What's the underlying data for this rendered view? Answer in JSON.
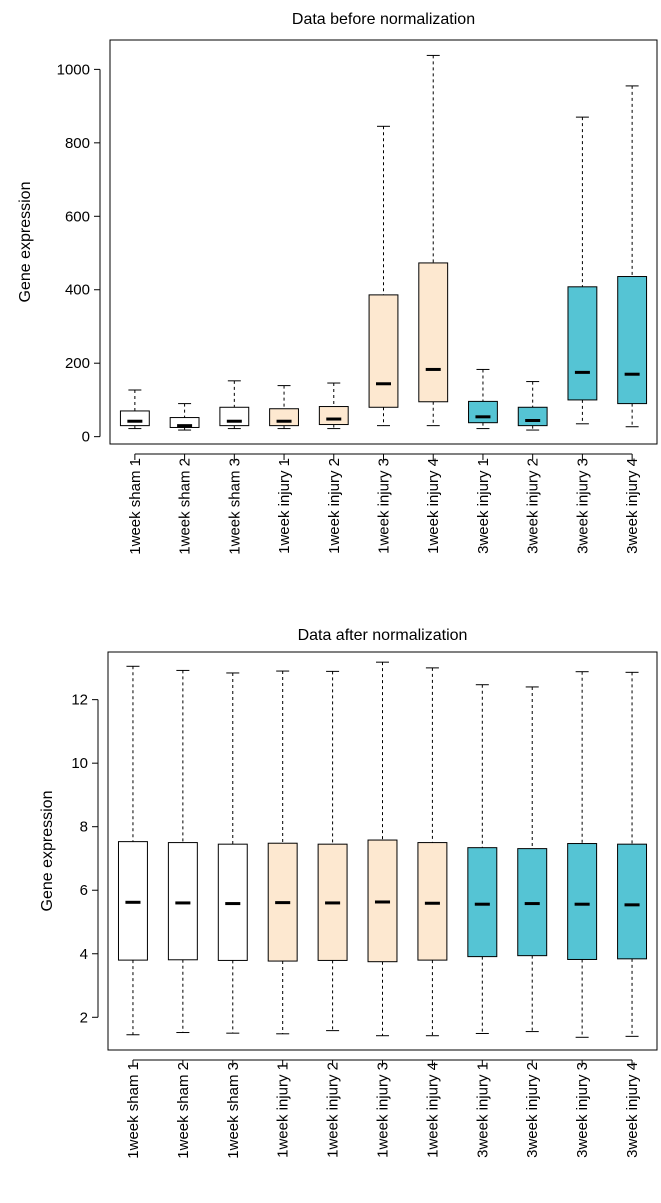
{
  "colors": {
    "sham": "#ffffff",
    "week1_injury": "#fde8d0",
    "week3_injury": "#55c4d4",
    "stroke": "#000000"
  },
  "chart_data": [
    {
      "type": "box",
      "title": "Data before normalization",
      "xlabel": "",
      "ylabel": "Gene expression",
      "ylim": [
        -20,
        1080
      ],
      "yticks": [
        0,
        200,
        400,
        600,
        800,
        1000
      ],
      "ytick_labels": [
        "0",
        "200",
        "400",
        "600",
        "800",
        "1000"
      ],
      "categories": [
        "1week sham 1",
        "1week sham 2",
        "1week sham 3",
        "1week injury 1",
        "1week injury 2",
        "1week injury 3",
        "1week injury 4",
        "3week injury 1",
        "3week injury 2",
        "3week injury 3",
        "3week injury 4"
      ],
      "group_colors": [
        "sham",
        "sham",
        "sham",
        "week1_injury",
        "week1_injury",
        "week1_injury",
        "week1_injury",
        "week3_injury",
        "week3_injury",
        "week3_injury",
        "week3_injury"
      ],
      "boxes": [
        {
          "whisker_low": 22,
          "q1": 30,
          "median": 42,
          "q3": 70,
          "whisker_high": 127
        },
        {
          "whisker_low": 18,
          "q1": 25,
          "median": 30,
          "q3": 52,
          "whisker_high": 90
        },
        {
          "whisker_low": 22,
          "q1": 30,
          "median": 42,
          "q3": 80,
          "whisker_high": 152
        },
        {
          "whisker_low": 22,
          "q1": 30,
          "median": 42,
          "q3": 76,
          "whisker_high": 139
        },
        {
          "whisker_low": 22,
          "q1": 33,
          "median": 48,
          "q3": 82,
          "whisker_high": 146
        },
        {
          "whisker_low": 30,
          "q1": 80,
          "median": 144,
          "q3": 386,
          "whisker_high": 845
        },
        {
          "whisker_low": 30,
          "q1": 95,
          "median": 183,
          "q3": 473,
          "whisker_high": 1038
        },
        {
          "whisker_low": 22,
          "q1": 38,
          "median": 54,
          "q3": 96,
          "whisker_high": 183
        },
        {
          "whisker_low": 18,
          "q1": 30,
          "median": 44,
          "q3": 80,
          "whisker_high": 150
        },
        {
          "whisker_low": 35,
          "q1": 100,
          "median": 175,
          "q3": 408,
          "whisker_high": 870
        },
        {
          "whisker_low": 27,
          "q1": 90,
          "median": 170,
          "q3": 436,
          "whisker_high": 955
        }
      ]
    },
    {
      "type": "box",
      "title": "Data after normalization",
      "xlabel": "",
      "ylabel": "Gene expression",
      "ylim": [
        0.97,
        13.5
      ],
      "yticks": [
        2,
        4,
        6,
        8,
        10,
        12
      ],
      "ytick_labels": [
        "2",
        "4",
        "6",
        "8",
        "10",
        "12"
      ],
      "categories": [
        "1week sham 1",
        "1week sham 2",
        "1week sham 3",
        "1week injury 1",
        "1week injury 2",
        "1week injury 3",
        "1week injury 4",
        "3week injury 1",
        "3week injury 2",
        "3week injury 3",
        "3week injury 4"
      ],
      "group_colors": [
        "sham",
        "sham",
        "sham",
        "week1_injury",
        "week1_injury",
        "week1_injury",
        "week1_injury",
        "week3_injury",
        "week3_injury",
        "week3_injury",
        "week3_injury"
      ],
      "boxes": [
        {
          "whisker_low": 1.45,
          "q1": 3.8,
          "median": 5.62,
          "q3": 7.53,
          "whisker_high": 13.05
        },
        {
          "whisker_low": 1.52,
          "q1": 3.81,
          "median": 5.6,
          "q3": 7.5,
          "whisker_high": 12.92
        },
        {
          "whisker_low": 1.5,
          "q1": 3.79,
          "median": 5.58,
          "q3": 7.45,
          "whisker_high": 12.84
        },
        {
          "whisker_low": 1.48,
          "q1": 3.77,
          "median": 5.61,
          "q3": 7.48,
          "whisker_high": 12.9
        },
        {
          "whisker_low": 1.58,
          "q1": 3.79,
          "median": 5.6,
          "q3": 7.45,
          "whisker_high": 12.89
        },
        {
          "whisker_low": 1.42,
          "q1": 3.75,
          "median": 5.63,
          "q3": 7.58,
          "whisker_high": 13.18
        },
        {
          "whisker_low": 1.42,
          "q1": 3.8,
          "median": 5.59,
          "q3": 7.5,
          "whisker_high": 13.0
        },
        {
          "whisker_low": 1.49,
          "q1": 3.91,
          "median": 5.56,
          "q3": 7.34,
          "whisker_high": 12.47
        },
        {
          "whisker_low": 1.55,
          "q1": 3.94,
          "median": 5.58,
          "q3": 7.31,
          "whisker_high": 12.4
        },
        {
          "whisker_low": 1.37,
          "q1": 3.82,
          "median": 5.56,
          "q3": 7.47,
          "whisker_high": 12.88
        },
        {
          "whisker_low": 1.4,
          "q1": 3.84,
          "median": 5.54,
          "q3": 7.45,
          "whisker_high": 12.86
        }
      ]
    }
  ]
}
